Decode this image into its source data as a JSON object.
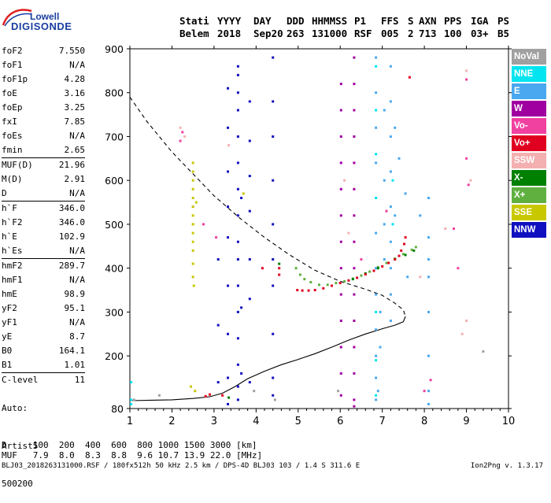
{
  "logo": {
    "top": "Lowell",
    "bottom": "DIGISONDE"
  },
  "header": {
    "labels": [
      "Stati",
      "YYYY",
      "DAY",
      "DDD",
      "HHMMSS",
      "P1",
      "FFS",
      "S",
      "AXN",
      "PPS",
      "IGA",
      "PS"
    ],
    "values": [
      "Belem",
      "2018",
      "Sep20",
      "263",
      "131000",
      "RSF",
      "005",
      "2",
      "713",
      "100",
      "03+",
      "B5"
    ]
  },
  "params": [
    {
      "name": "foF2",
      "value": "7.550"
    },
    {
      "name": "foF1",
      "value": "N/A"
    },
    {
      "name": "foF1p",
      "value": "4.28"
    },
    {
      "name": "foE",
      "value": "3.16"
    },
    {
      "name": "foEp",
      "value": "3.25"
    },
    {
      "name": "fxI",
      "value": "7.85"
    },
    {
      "name": "foEs",
      "value": "N/A"
    },
    {
      "name": "fmin",
      "value": "2.65",
      "sep_after": true
    },
    {
      "name": "MUF(D)",
      "value": "21.96"
    },
    {
      "name": "M(D)",
      "value": "2.91"
    },
    {
      "name": "D",
      "value": "N/A",
      "sep_after": true
    },
    {
      "name": "h`F",
      "value": "346.0"
    },
    {
      "name": "h`F2",
      "value": "346.0"
    },
    {
      "name": "h`E",
      "value": "102.9"
    },
    {
      "name": "h`Es",
      "value": "N/A",
      "sep_after": true
    },
    {
      "name": "hmF2",
      "value": "289.7"
    },
    {
      "name": "hmF1",
      "value": "N/A"
    },
    {
      "name": "hmE",
      "value": "98.9"
    },
    {
      "name": "yF2",
      "value": "95.1"
    },
    {
      "name": "yF1",
      "value": "N/A"
    },
    {
      "name": "yE",
      "value": "8.7"
    },
    {
      "name": "B0",
      "value": "164.1"
    },
    {
      "name": "B1",
      "value": "1.01",
      "sep_after": true
    },
    {
      "name": "C-level",
      "value": "11",
      "sep_after": true
    }
  ],
  "auto": {
    "line1": "Auto:",
    "line2": "Artist5",
    "line3": "500200"
  },
  "legend": [
    {
      "label": "NoVal",
      "color": "#a0a0a0"
    },
    {
      "label": "NNE",
      "color": "#00e5f0"
    },
    {
      "label": "E",
      "color": "#4aa8f0"
    },
    {
      "label": "W",
      "color": "#a000a0"
    },
    {
      "label": "Vo-",
      "color": "#f040a0"
    },
    {
      "label": "Vo+",
      "color": "#e00020"
    },
    {
      "label": "SSW",
      "color": "#f4b0b0"
    },
    {
      "label": "X-",
      "color": "#008000"
    },
    {
      "label": "X+",
      "color": "#60b040"
    },
    {
      "label": "SSE",
      "color": "#c8c800"
    },
    {
      "label": "NNW",
      "color": "#1010c0"
    }
  ],
  "mufTable": {
    "row1": "D     100  200  400  600  800 1000 1500 3000 [km]",
    "row2": "MUF   7.9  8.0  8.3  8.8  9.6 10.7 13.9 22.0 [MHz]"
  },
  "footer": {
    "left": "BLJ03_2018263131000.RSF / 180fx512h 50 kHz 2.5 km / DPS-4D BLJ03 103 / 1.4 S 311.6 E",
    "right": "Ion2Png v. 1.3.17"
  },
  "chart_data": {
    "type": "scatter",
    "title": "",
    "xlabel": "",
    "ylabel": "",
    "xlim": [
      1,
      10
    ],
    "ylim": [
      80,
      900
    ],
    "x_ticks": [
      1,
      2,
      3,
      4,
      5,
      6,
      7,
      8,
      9,
      10
    ],
    "y_ticks": [
      80,
      200,
      300,
      400,
      500,
      600,
      700,
      800,
      900
    ],
    "grid": false,
    "series": [
      {
        "name": "NNW",
        "color": "#1010c0",
        "points": [
          [
            3.57,
            860
          ],
          [
            3.57,
            840
          ],
          [
            3.57,
            800
          ],
          [
            3.57,
            760
          ],
          [
            3.57,
            700
          ],
          [
            3.57,
            640
          ],
          [
            3.57,
            580
          ],
          [
            3.57,
            520
          ],
          [
            3.57,
            460
          ],
          [
            3.57,
            420
          ],
          [
            3.57,
            360
          ],
          [
            3.57,
            300
          ],
          [
            3.57,
            240
          ],
          [
            3.57,
            180
          ],
          [
            3.57,
            130
          ],
          [
            3.57,
            100
          ],
          [
            4.4,
            880
          ],
          [
            4.4,
            780
          ],
          [
            4.4,
            700
          ],
          [
            4.4,
            600
          ],
          [
            4.4,
            500
          ],
          [
            4.4,
            420
          ],
          [
            4.4,
            360
          ],
          [
            4.4,
            250
          ],
          [
            4.4,
            150
          ],
          [
            4.4,
            110
          ],
          [
            3.33,
            810
          ],
          [
            3.33,
            720
          ],
          [
            3.33,
            620
          ],
          [
            3.33,
            540
          ],
          [
            3.33,
            470
          ],
          [
            3.33,
            360
          ],
          [
            3.33,
            250
          ],
          [
            3.33,
            150
          ],
          [
            3.33,
            90
          ],
          [
            3.85,
            780
          ],
          [
            3.85,
            690
          ],
          [
            3.85,
            610
          ],
          [
            3.85,
            530
          ],
          [
            3.85,
            420
          ],
          [
            3.85,
            330
          ],
          [
            3.85,
            140
          ],
          [
            3.1,
            420
          ],
          [
            3.1,
            270
          ],
          [
            3.1,
            140
          ],
          [
            3.65,
            560
          ],
          [
            3.65,
            310
          ],
          [
            3.65,
            160
          ]
        ]
      },
      {
        "name": "W",
        "color": "#a000a0",
        "points": [
          [
            6.02,
            820
          ],
          [
            6.02,
            760
          ],
          [
            6.02,
            700
          ],
          [
            6.02,
            640
          ],
          [
            6.02,
            580
          ],
          [
            6.02,
            520
          ],
          [
            6.02,
            460
          ],
          [
            6.02,
            400
          ],
          [
            6.02,
            340
          ],
          [
            6.02,
            280
          ],
          [
            6.02,
            220
          ],
          [
            6.02,
            160
          ],
          [
            6.02,
            110
          ],
          [
            6.33,
            880
          ],
          [
            6.33,
            820
          ],
          [
            6.33,
            760
          ],
          [
            6.33,
            700
          ],
          [
            6.33,
            640
          ],
          [
            6.33,
            580
          ],
          [
            6.33,
            520
          ],
          [
            6.33,
            460
          ],
          [
            6.33,
            400
          ],
          [
            6.33,
            340
          ],
          [
            6.33,
            280
          ],
          [
            6.33,
            220
          ],
          [
            6.33,
            160
          ],
          [
            6.33,
            100
          ],
          [
            6.33,
            85
          ]
        ]
      },
      {
        "name": "E",
        "color": "#4aa8f0",
        "points": [
          [
            6.85,
            880
          ],
          [
            6.85,
            800
          ],
          [
            6.85,
            720
          ],
          [
            6.85,
            640
          ],
          [
            6.85,
            560
          ],
          [
            6.85,
            480
          ],
          [
            6.85,
            400
          ],
          [
            6.85,
            340
          ],
          [
            6.85,
            260
          ],
          [
            6.85,
            200
          ],
          [
            6.85,
            150
          ],
          [
            6.85,
            100
          ],
          [
            7.2,
            860
          ],
          [
            7.2,
            780
          ],
          [
            7.2,
            700
          ],
          [
            7.2,
            620
          ],
          [
            7.2,
            540
          ],
          [
            7.2,
            460
          ],
          [
            7.2,
            400
          ],
          [
            7.2,
            340
          ],
          [
            7.2,
            280
          ],
          [
            7.05,
            760
          ],
          [
            7.05,
            600
          ],
          [
            7.05,
            500
          ],
          [
            7.05,
            420
          ],
          [
            7.3,
            720
          ],
          [
            7.3,
            520
          ],
          [
            8.1,
            560
          ],
          [
            8.1,
            470
          ],
          [
            8.1,
            420
          ],
          [
            8.1,
            380
          ],
          [
            8.1,
            300
          ],
          [
            8.1,
            200
          ],
          [
            8.1,
            120
          ],
          [
            8.1,
            90
          ],
          [
            7.55,
            570
          ],
          [
            7.6,
            380
          ],
          [
            7.9,
            520
          ],
          [
            7.4,
            650
          ],
          [
            6.95,
            300
          ],
          [
            6.95,
            220
          ],
          [
            6.9,
            120
          ]
        ]
      },
      {
        "name": "NNE",
        "color": "#00e5f0",
        "points": [
          [
            1.03,
            140
          ],
          [
            1.03,
            100
          ],
          [
            1.03,
            90
          ],
          [
            6.85,
            860
          ],
          [
            6.85,
            760
          ],
          [
            6.85,
            660
          ],
          [
            6.85,
            560
          ],
          [
            6.85,
            300
          ],
          [
            6.85,
            190
          ],
          [
            6.85,
            110
          ],
          [
            7.25,
            600
          ],
          [
            7.25,
            500
          ]
        ]
      },
      {
        "name": "X+",
        "color": "#60b040",
        "points": [
          [
            4.95,
            400
          ],
          [
            5.05,
            385
          ],
          [
            5.15,
            375
          ],
          [
            5.3,
            368
          ],
          [
            5.5,
            362
          ],
          [
            5.7,
            362
          ],
          [
            5.9,
            366
          ],
          [
            6.1,
            370
          ],
          [
            6.3,
            376
          ],
          [
            6.5,
            383
          ],
          [
            6.7,
            392
          ],
          [
            6.9,
            402
          ],
          [
            7.1,
            412
          ],
          [
            7.3,
            422
          ],
          [
            7.5,
            432
          ],
          [
            7.7,
            442
          ],
          [
            7.8,
            448
          ]
        ]
      },
      {
        "name": "X-",
        "color": "#008000",
        "points": [
          [
            6.3,
            375
          ],
          [
            6.6,
            388
          ],
          [
            6.9,
            400
          ],
          [
            7.3,
            420
          ],
          [
            7.55,
            430
          ],
          [
            7.75,
            440
          ],
          [
            4.55,
            410
          ],
          [
            3.35,
            105
          ]
        ]
      },
      {
        "name": "Vo+",
        "color": "#e00020",
        "points": [
          [
            4.98,
            350
          ],
          [
            5.1,
            349
          ],
          [
            5.25,
            349
          ],
          [
            5.4,
            350
          ],
          [
            5.6,
            354
          ],
          [
            5.8,
            360
          ],
          [
            6.0,
            366
          ],
          [
            6.2,
            372
          ],
          [
            6.4,
            378
          ],
          [
            6.6,
            386
          ],
          [
            6.8,
            394
          ],
          [
            7.0,
            404
          ],
          [
            7.15,
            412
          ],
          [
            7.3,
            420
          ],
          [
            7.4,
            428
          ],
          [
            7.45,
            440
          ],
          [
            7.52,
            455
          ],
          [
            7.55,
            470
          ],
          [
            4.55,
            400
          ],
          [
            4.55,
            385
          ],
          [
            4.15,
            400
          ],
          [
            3.2,
            110
          ],
          [
            2.9,
            112
          ],
          [
            2.8,
            108
          ],
          [
            7.65,
            835
          ]
        ]
      },
      {
        "name": "Vo-",
        "color": "#f040a0",
        "points": [
          [
            2.25,
            710
          ],
          [
            2.2,
            690
          ],
          [
            9.0,
            830
          ],
          [
            9.0,
            650
          ],
          [
            9.05,
            590
          ],
          [
            8.7,
            490
          ],
          [
            8.8,
            400
          ],
          [
            6.5,
            420
          ],
          [
            7.1,
            530
          ],
          [
            3.05,
            470
          ],
          [
            2.75,
            500
          ],
          [
            8.0,
            120
          ],
          [
            8.15,
            145
          ]
        ]
      },
      {
        "name": "SSW",
        "color": "#f4b0b0",
        "points": [
          [
            2.2,
            720
          ],
          [
            2.3,
            700
          ],
          [
            2.5,
            540
          ],
          [
            2.5,
            500
          ],
          [
            3.35,
            680
          ],
          [
            7.9,
            380
          ],
          [
            8.5,
            490
          ],
          [
            9.0,
            850
          ],
          [
            9.1,
            600
          ],
          [
            6.1,
            600
          ],
          [
            6.2,
            480
          ],
          [
            9.0,
            280
          ],
          [
            8.9,
            250
          ]
        ]
      },
      {
        "name": "SSE",
        "color": "#c8c800",
        "points": [
          [
            2.5,
            640
          ],
          [
            2.5,
            620
          ],
          [
            2.5,
            600
          ],
          [
            2.5,
            580
          ],
          [
            2.5,
            560
          ],
          [
            2.5,
            540
          ],
          [
            2.5,
            520
          ],
          [
            2.5,
            500
          ],
          [
            2.5,
            480
          ],
          [
            2.5,
            460
          ],
          [
            2.5,
            440
          ],
          [
            2.5,
            410
          ],
          [
            2.5,
            380
          ],
          [
            2.52,
            360
          ],
          [
            2.58,
            550
          ],
          [
            2.55,
            120
          ],
          [
            2.45,
            130
          ],
          [
            3.7,
            570
          ]
        ]
      },
      {
        "name": "NoVal",
        "color": "#a0a0a0",
        "points": [
          [
            1.1,
            100
          ],
          [
            1.7,
            110
          ],
          [
            3.95,
            120
          ],
          [
            4.45,
            100
          ],
          [
            5.95,
            120
          ],
          [
            9.4,
            210
          ]
        ]
      }
    ],
    "curves": [
      {
        "name": "h`F trace",
        "style": "dashed",
        "x": [
          1,
          1.4,
          2,
          2.6,
          3,
          3.6,
          4.2,
          4.8,
          5.4,
          6.0,
          6.6,
          7.0,
          7.3,
          7.5,
          7.55
        ],
        "y": [
          790,
          735,
          665,
          605,
          565,
          515,
          470,
          430,
          395,
          370,
          352,
          338,
          320,
          305,
          290
        ]
      },
      {
        "name": "profile",
        "style": "solid",
        "x": [
          1,
          1.5,
          2,
          2.5,
          2.9,
          3.2,
          3.5,
          3.8,
          4.2,
          4.6,
          5.0,
          5.4,
          5.8,
          6.2,
          6.6,
          7.0,
          7.3,
          7.5,
          7.55
        ],
        "y": [
          98,
          99,
          100,
          103,
          107,
          115,
          130,
          148,
          165,
          180,
          192,
          205,
          220,
          236,
          250,
          262,
          270,
          278,
          290
        ]
      }
    ]
  }
}
